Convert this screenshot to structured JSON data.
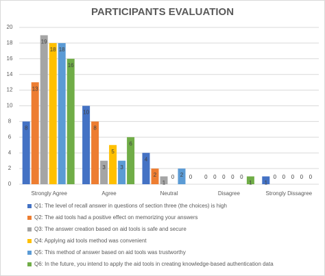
{
  "chart_data": {
    "type": "bar",
    "title": "PARTICIPANTS EVALUATION",
    "categories": [
      "Strongly Agree",
      "Agree",
      "Neutral",
      "Disagree",
      "Strongly Dissagree"
    ],
    "series": [
      {
        "name": "Q1: The level of recall answer in questions of section three (the choices) is high",
        "color": "#4472c4",
        "values": [
          8,
          10,
          4,
          0,
          1
        ]
      },
      {
        "name": "Q2: The aid tools had a positive effect on memorizing your answers",
        "color": "#ed7d31",
        "values": [
          13,
          8,
          2,
          0,
          0
        ]
      },
      {
        "name": "Q3: The answer creation based on aid tools is safe and secure",
        "color": "#a5a5a5",
        "values": [
          19,
          3,
          1,
          0,
          0
        ]
      },
      {
        "name": "Q4: Applying aid tools method was convenient",
        "color": "#ffc000",
        "values": [
          18,
          5,
          0,
          0,
          0
        ]
      },
      {
        "name": "Q5: This method of answer based on aid tools was trustworthy",
        "color": "#5b9bd5",
        "values": [
          18,
          3,
          2,
          0,
          0
        ]
      },
      {
        "name": "Q6: In the future, you intend to apply the aid tools in creating knowledge-based authentication data",
        "color": "#70ad47",
        "values": [
          16,
          6,
          0,
          1,
          0
        ]
      }
    ],
    "ylim": [
      0,
      20
    ],
    "yticks": [
      0,
      2,
      4,
      6,
      8,
      10,
      12,
      14,
      16,
      18,
      20
    ],
    "grid": true,
    "legend": "bottom"
  }
}
